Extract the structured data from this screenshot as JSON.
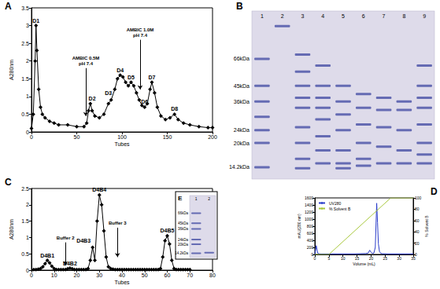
{
  "chart_data": [
    {
      "panel_label": "A",
      "type": "line",
      "marker": "diamond",
      "color": "#000000",
      "x_label": "Tubes",
      "y_label": "A280nm",
      "x": [
        0,
        2,
        4,
        5,
        6,
        8,
        10,
        12,
        15,
        20,
        25,
        30,
        40,
        50,
        58,
        61,
        63,
        65,
        67,
        70,
        75,
        80,
        85,
        88,
        92,
        95,
        98,
        101,
        104,
        107,
        110,
        113,
        116,
        119,
        122,
        125,
        128,
        131,
        133,
        136,
        139,
        143,
        148,
        153,
        158,
        162,
        168,
        175,
        185,
        195,
        200
      ],
      "values": [
        0.1,
        0.5,
        2.0,
        3.0,
        2.3,
        1.2,
        0.7,
        0.5,
        0.4,
        0.3,
        0.25,
        0.2,
        0.2,
        0.15,
        0.15,
        0.25,
        0.6,
        0.8,
        0.6,
        0.45,
        0.4,
        0.5,
        0.8,
        0.9,
        1.2,
        1.5,
        1.6,
        1.55,
        1.4,
        1.3,
        1.4,
        1.3,
        1.1,
        0.9,
        0.75,
        0.7,
        0.8,
        1.2,
        1.4,
        1.1,
        0.7,
        0.45,
        0.35,
        0.4,
        0.5,
        0.35,
        0.25,
        0.2,
        0.15,
        0.12,
        0.12
      ],
      "xlim": [
        0,
        200
      ],
      "xticks": [
        0,
        50,
        100,
        150,
        200
      ],
      "ylim": [
        0,
        3.5
      ],
      "yticks": [
        0,
        0.5,
        1,
        1.5,
        2,
        2.5,
        3,
        3.5
      ],
      "grid": false,
      "annotations": [
        {
          "text": "D1",
          "x": 5,
          "y": 3.0
        },
        {
          "text": "D2",
          "x": 67,
          "y": 0.8
        },
        {
          "text": "D3",
          "x": 85,
          "y": 0.95
        },
        {
          "text": "D4",
          "x": 98,
          "y": 1.6
        },
        {
          "text": "D5",
          "x": 110,
          "y": 1.4
        },
        {
          "text": "D6",
          "x": 125,
          "y": 0.7
        },
        {
          "text": "D7",
          "x": 133,
          "y": 1.4
        },
        {
          "text": "D8",
          "x": 158,
          "y": 0.5
        },
        {
          "text": "AMBIC 0.5M\npH 7.4",
          "x": 60,
          "y": 1.8,
          "arrow_to_y": 0.45
        },
        {
          "text": "AMBIC 1.0M\npH 7.4",
          "x": 120,
          "y": 2.6,
          "arrow_to_y": 1.2
        }
      ]
    },
    {
      "panel_label": "C",
      "type": "line",
      "marker": "diamond",
      "color": "#000000",
      "x_label": "Tubes",
      "y_label": "A280nm",
      "x": [
        1,
        2,
        3,
        4,
        5,
        6,
        7,
        8,
        9,
        10,
        11,
        12,
        13,
        14,
        15,
        16,
        17,
        18,
        19,
        20,
        21,
        22,
        23,
        24,
        25,
        26,
        27,
        28,
        29,
        30,
        31,
        32,
        33,
        34,
        35,
        36,
        37,
        38,
        39,
        40,
        41,
        42,
        43,
        44,
        45,
        46,
        47,
        48,
        49,
        50,
        51,
        52,
        53,
        54,
        55,
        56,
        57,
        58,
        59,
        60,
        61,
        62,
        63,
        64,
        65,
        66,
        67,
        68,
        69,
        70
      ],
      "values": [
        0.02,
        0.02,
        0.03,
        0.05,
        0.1,
        0.2,
        0.3,
        0.22,
        0.12,
        0.05,
        0.02,
        0.02,
        0.02,
        0.02,
        0.02,
        0.04,
        0.06,
        0.04,
        0.02,
        0.02,
        0.02,
        0.02,
        0.02,
        0.02,
        0.05,
        0.3,
        0.7,
        0.3,
        1.5,
        2.3,
        2.0,
        1.2,
        0.4,
        0.1,
        0.05,
        0.03,
        0.02,
        0.02,
        0.02,
        0.02,
        0.02,
        0.02,
        0.02,
        0.02,
        0.02,
        0.02,
        0.02,
        0.02,
        0.02,
        0.02,
        0.02,
        0.02,
        0.02,
        0.02,
        0.02,
        0.02,
        0.05,
        0.4,
        0.9,
        1.05,
        0.8,
        0.3,
        0.05,
        0.02,
        0.02,
        0.02,
        0.02,
        0.02,
        0.02,
        0.02
      ],
      "xlim": [
        0,
        80
      ],
      "xticks": [
        0,
        10,
        20,
        30,
        40,
        50,
        60,
        70,
        80
      ],
      "ylim": [
        0,
        2.5
      ],
      "yticks": [
        0,
        0.5,
        1,
        1.5,
        2,
        2.5
      ],
      "grid": false,
      "annotations": [
        {
          "text": "D4B1",
          "x": 7,
          "y": 0.3
        },
        {
          "text": "D4B2",
          "x": 17,
          "y": 0.06
        },
        {
          "text": "D4B3",
          "x": 23,
          "y": 0.75
        },
        {
          "text": "D4B4",
          "x": 30,
          "y": 2.3
        },
        {
          "text": "D4B5",
          "x": 60,
          "y": 1.05
        },
        {
          "text": "Buffer 2",
          "x": 15,
          "y": 0.85,
          "arrow_to_y": 0.15
        },
        {
          "text": "Buffer 3",
          "x": 38,
          "y": 1.3,
          "arrow_to_y": 0.4
        }
      ]
    },
    {
      "panel_label": "D",
      "type": "line",
      "marker": "none",
      "x_label": "Volume (mL)",
      "y_label": "mAU(280 nm)",
      "y2_label": "% Solvent B",
      "legend": "upper left",
      "series": [
        {
          "name": "UV280",
          "color": "#2a3cc9",
          "x": [
            0,
            0.5,
            1,
            1.5,
            2,
            4,
            6,
            8,
            10,
            12,
            14,
            16,
            18,
            19,
            19.5,
            20,
            20.5,
            21,
            21.5,
            22,
            22.3,
            22.6,
            23,
            23.5,
            24,
            26,
            28,
            30,
            32,
            34,
            35
          ],
          "values": [
            0,
            250,
            40,
            20,
            15,
            15,
            15,
            15,
            15,
            15,
            15,
            20,
            25,
            40,
            120,
            60,
            30,
            40,
            200,
            1450,
            900,
            300,
            80,
            30,
            20,
            15,
            15,
            15,
            15,
            15,
            15
          ]
        },
        {
          "name": "% Solvent B",
          "color": "#a8c83c",
          "axis": "y2",
          "x": [
            0,
            5,
            27,
            35
          ],
          "values": [
            0,
            0,
            100,
            100
          ]
        }
      ],
      "xlim": [
        0,
        35
      ],
      "xticks": [
        0,
        5,
        10,
        15,
        20,
        25,
        30,
        35
      ],
      "ylim": [
        0,
        1600
      ],
      "yticks": [
        0,
        200,
        400,
        600,
        800,
        1000,
        1200,
        1400,
        1600
      ],
      "y2lim": [
        0,
        100
      ],
      "y2ticks": [
        0,
        20,
        40,
        60,
        80,
        100
      ],
      "grid": false
    }
  ],
  "gels": [
    {
      "panel_label": "B",
      "lanes": [
        "1",
        "2",
        "3",
        "4",
        "5",
        "6",
        "7",
        "8",
        "9"
      ],
      "ylim": [
        130,
        12
      ],
      "log": "y",
      "markers": [
        {
          "label": "66kDa",
          "value": 66
        },
        {
          "label": "45kDa",
          "value": 45
        },
        {
          "label": "36kDa",
          "value": 36
        },
        {
          "label": "24kDa",
          "value": 24
        },
        {
          "label": "20kDa",
          "value": 20
        },
        {
          "label": "14.2kDa",
          "value": 14.2
        }
      ],
      "bands": [
        [
          66,
          45,
          36,
          29,
          24,
          20,
          14.2
        ],
        [
          105
        ],
        [
          70,
          55,
          45,
          38,
          33,
          25,
          20,
          16,
          14
        ],
        [
          60,
          45,
          38,
          33,
          28,
          22,
          18,
          15
        ],
        [
          45,
          36,
          30,
          24,
          18,
          15,
          14
        ],
        [
          40,
          33,
          26,
          20,
          16,
          14.5
        ],
        [
          38,
          32,
          25,
          19,
          15
        ],
        [
          36,
          32,
          24,
          18,
          15
        ],
        [
          60,
          45,
          38,
          33,
          26,
          20,
          17,
          15
        ]
      ]
    },
    {
      "panel_label": "E",
      "lanes": [
        "1",
        "2"
      ],
      "ylim": [
        130,
        12
      ],
      "log": "y",
      "markers": [
        {
          "label": "66kDa",
          "value": 66
        },
        {
          "label": "45kDa",
          "value": 45
        },
        {
          "label": "36kDa",
          "value": 36
        },
        {
          "label": "24kDa",
          "value": 24
        },
        {
          "label": "20kDa",
          "value": 20
        },
        {
          "label": "14.2kDa",
          "value": 14.2
        }
      ],
      "bands": [
        [
          66,
          45,
          36,
          24,
          20,
          14.2
        ],
        [
          14.5
        ]
      ]
    }
  ]
}
